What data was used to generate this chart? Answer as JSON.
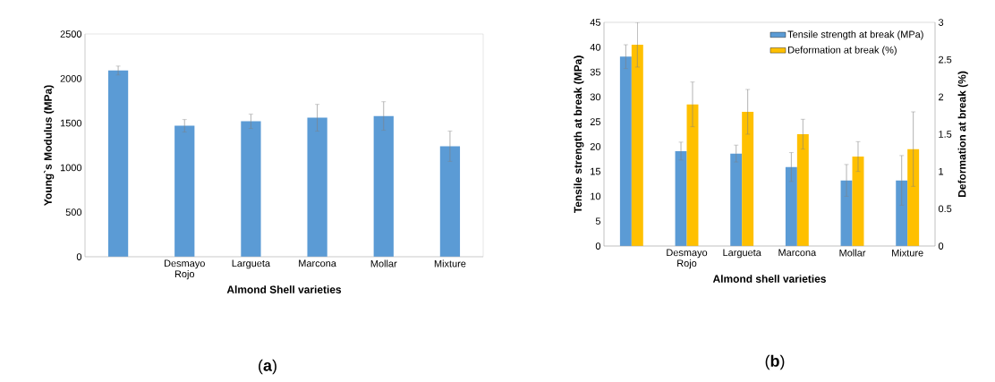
{
  "chart_data": [
    {
      "type": "bar",
      "categories": [
        null,
        "Desmayo Rojo",
        "Largueta",
        "Marcona",
        "Mollar",
        "Mixture"
      ],
      "xlabel": "Almond Shell varieties",
      "ylabel": "Young`s Modulus (MPa)",
      "ylim": [
        0,
        2500
      ],
      "yticks": [
        0,
        500,
        1000,
        1500,
        2000,
        2500
      ],
      "series": [
        {
          "color": "#5b9bd5",
          "values": [
            2090,
            1470,
            1520,
            1560,
            1580,
            1240
          ],
          "errors": [
            50,
            70,
            80,
            150,
            160,
            170
          ]
        }
      ],
      "annotations": [
        "(**a**)"
      ]
    },
    {
      "type": "bar",
      "categories": [
        null,
        "Desmayo Rojo",
        "Largueta",
        "Marcona",
        "Mollar",
        "Mixture"
      ],
      "xlabel": "Almond shell varieties",
      "ylabel": "Tensile strength at break (MPa)",
      "y2label": "Deformation at break (%)",
      "ylim": [
        0,
        45
      ],
      "yticks": [
        0,
        5,
        10,
        15,
        20,
        25,
        30,
        35,
        40,
        45
      ],
      "y2lim": [
        0,
        3
      ],
      "y2ticks": [
        0,
        0.5,
        1,
        1.5,
        2,
        2.5,
        3
      ],
      "legend": "top right",
      "series": [
        {
          "name": "Tensile strength at break (MPa)",
          "color": "#5b9bd5",
          "values": [
            38.1,
            19.1,
            18.6,
            15.9,
            13.2,
            13.2
          ],
          "errors": [
            2.4,
            1.8,
            1.7,
            2.9,
            3.2,
            5.0
          ]
        },
        {
          "name": "Deformation at break (%)",
          "color": "#ffc000",
          "axis": "y2",
          "values": [
            2.7,
            1.9,
            1.8,
            1.5,
            1.2,
            1.3
          ],
          "errors": [
            0.3,
            0.3,
            0.3,
            0.2,
            0.2,
            0.5
          ]
        }
      ],
      "annotations": [
        "(**b**)"
      ]
    }
  ]
}
